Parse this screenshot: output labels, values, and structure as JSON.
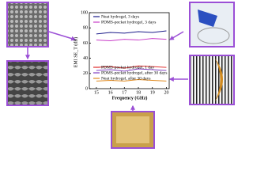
{
  "chart_data": {
    "type": "line",
    "xlabel": "Frequency (GHz)",
    "ylabel": "EMI SE_T (dB)",
    "x": [
      15,
      16,
      17,
      18,
      19,
      20
    ],
    "series": [
      {
        "name": "Neat hydrogel, 3 days",
        "color": "#1c1c8a",
        "values": [
          72,
          74,
          73,
          75,
          74,
          76
        ]
      },
      {
        "name": "PDMS-pocket hydrogel, 3 days",
        "color": "#c83cc8",
        "values": [
          64,
          63,
          65,
          64,
          66,
          65
        ]
      },
      {
        "name": "PDMS-pocket hydrogel, 1 day",
        "color": "#e03030",
        "values": [
          28,
          29,
          27,
          30,
          29,
          28
        ]
      },
      {
        "name": "PDMS-pocket hydrogel, after 30 days",
        "color": "#8040c0",
        "values": [
          24,
          25,
          23,
          26,
          25,
          24
        ]
      },
      {
        "name": "Neat hydrogel, after 30 days",
        "color": "#e08a20",
        "values": [
          10,
          11,
          10,
          12,
          11,
          10
        ]
      }
    ],
    "xlim": [
      14.5,
      20.2
    ],
    "ylim": [
      0,
      100
    ],
    "xticks": [
      15,
      16,
      17,
      18,
      19,
      20
    ],
    "yticks": [
      0,
      20,
      40,
      60,
      80,
      100
    ]
  }
}
